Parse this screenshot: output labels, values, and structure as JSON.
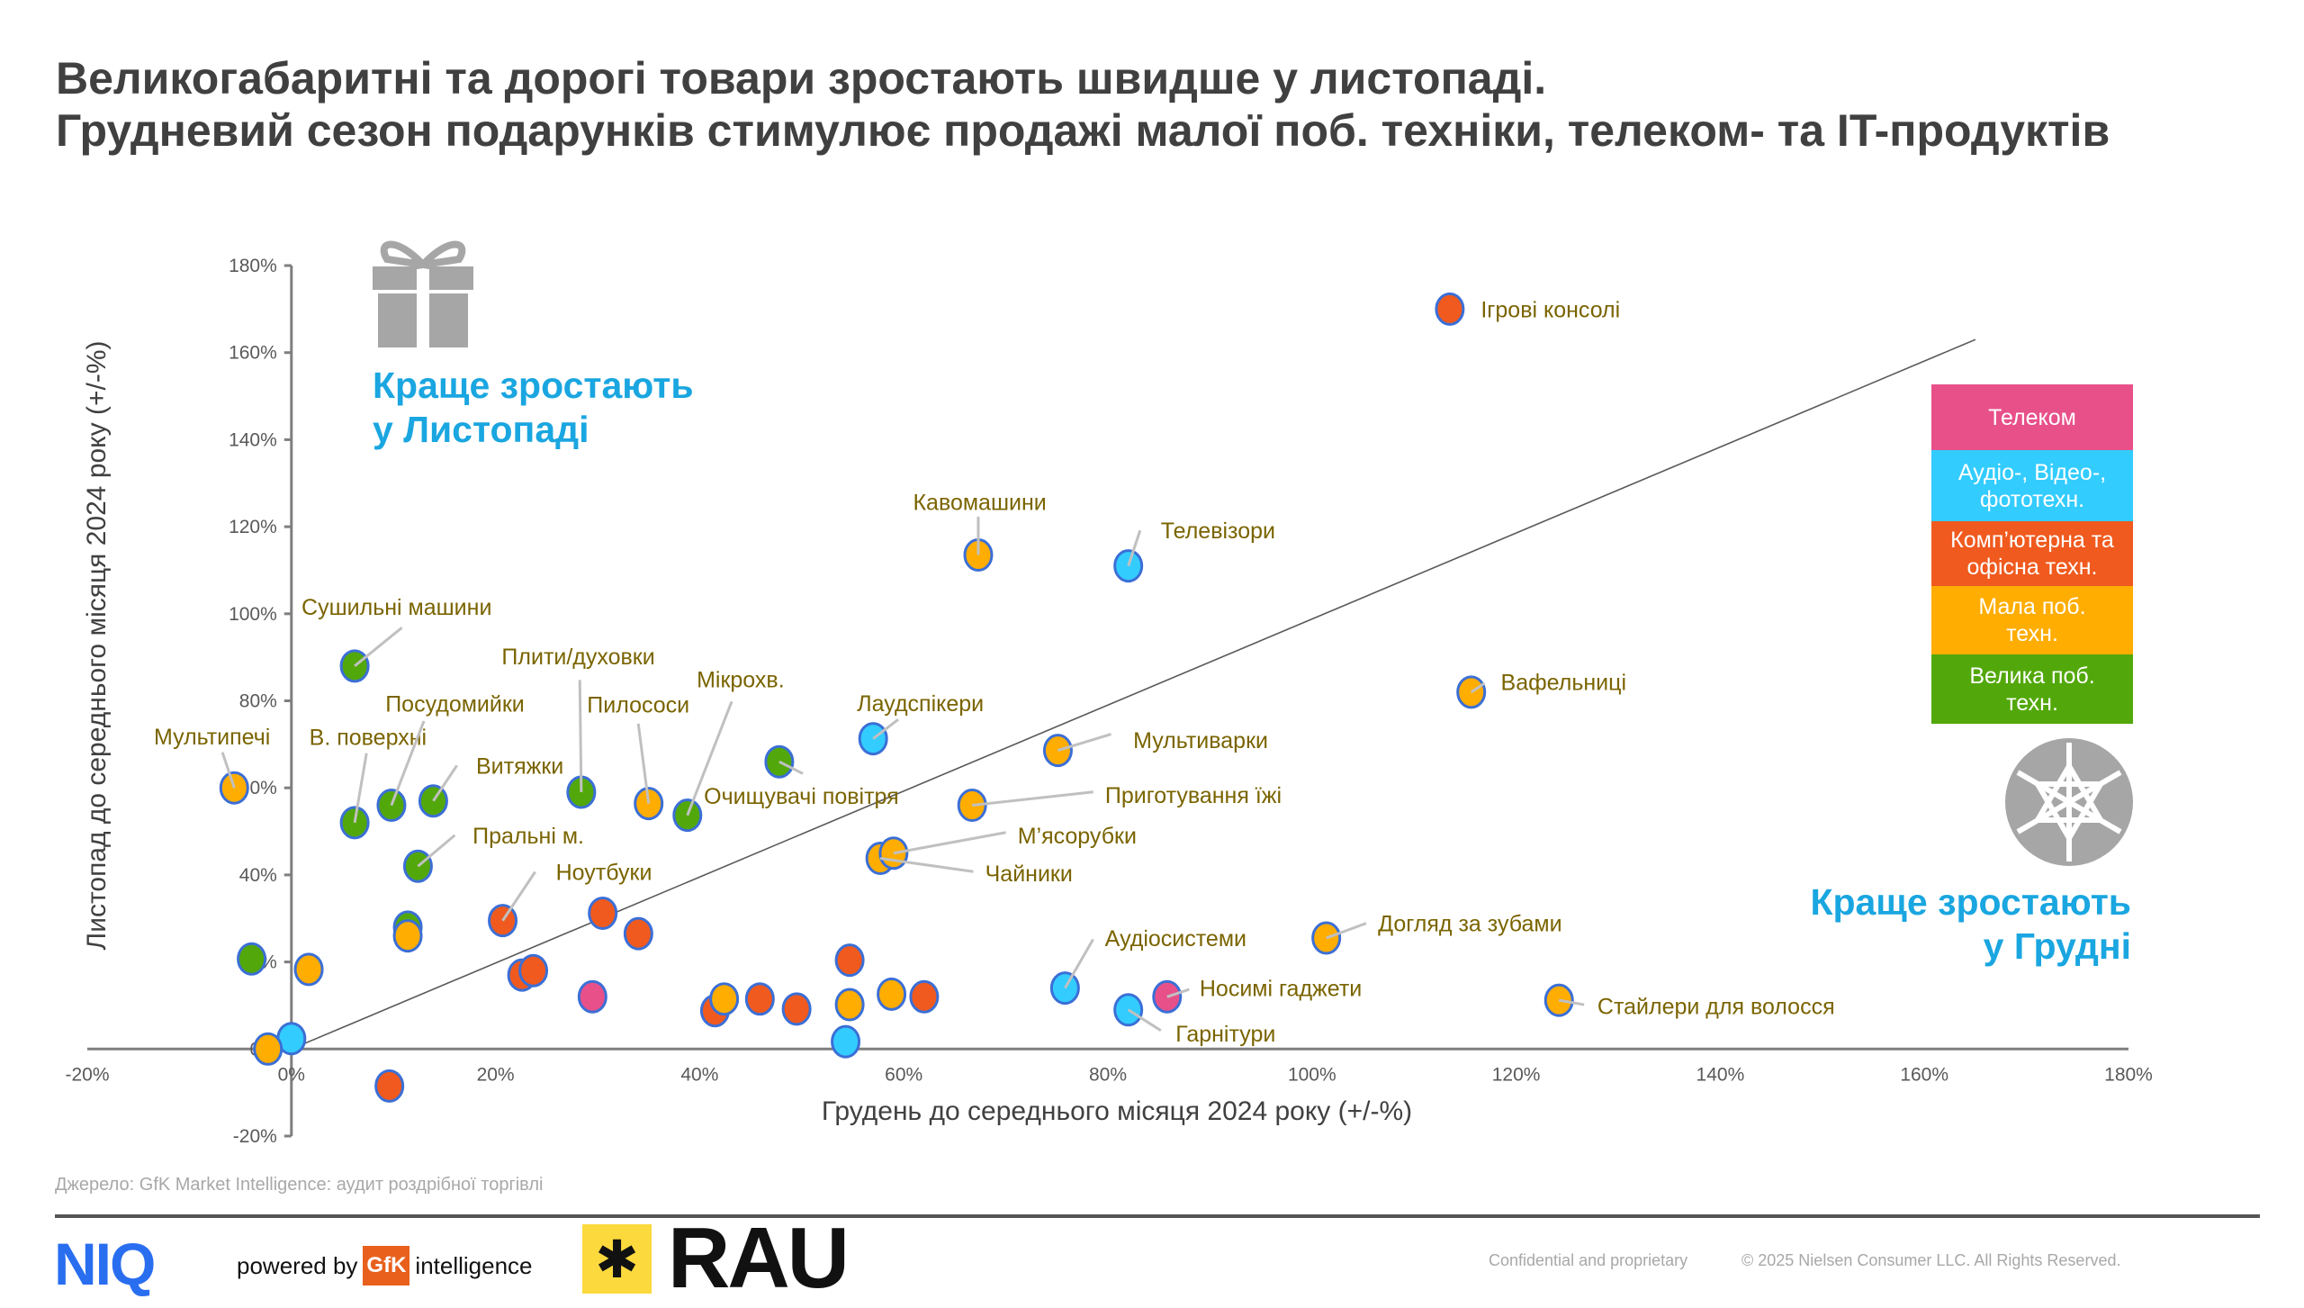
{
  "title": {
    "line1": "Великогабаритні та дорогі товари зростають швидше у листопаді.",
    "line2": "Грудневий сезон подарунків стимулює продажі малої поб. техніки, телеком- та IT-продуктів"
  },
  "callouts": {
    "november_line1": "Краще зростають",
    "november_line2": "у Листопаді",
    "december_line1": "Краще зростають",
    "december_line2": "у Грудні"
  },
  "icons": {
    "november": "gift-icon",
    "december": "snowflake-icon"
  },
  "legend": [
    {
      "key": "telecom",
      "label": "Телеком",
      "color": "#e8508a"
    },
    {
      "key": "audio",
      "label": "Аудіо-, Відео-, фототехн.",
      "color": "#33ccff"
    },
    {
      "key": "computer",
      "label": "Комп’ютерна та офісна техн.",
      "color": "#f05a1e"
    },
    {
      "key": "small",
      "label": "Мала поб. техн.",
      "color": "#ffad00"
    },
    {
      "key": "large",
      "label": "Велика поб. техн.",
      "color": "#52a80a"
    }
  ],
  "chart_data": {
    "type": "scatter",
    "xlabel": "Грудень до середнього місяця 2024 року (+/-%)",
    "ylabel": "Листопад до середнього місяця 2024 року (+/-%)",
    "xlim": [
      -20,
      180
    ],
    "ylim": [
      -20,
      180
    ],
    "x_ticks": [
      "-20%",
      "0%",
      "20%",
      "40%",
      "60%",
      "80%",
      "100%",
      "120%",
      "140%",
      "160%",
      "180%"
    ],
    "y_ticks": [
      "-20%",
      "0%",
      "20%",
      "40%",
      "60%",
      "80%",
      "100%",
      "120%",
      "140%",
      "160%",
      "180%"
    ],
    "reference_line": {
      "from": [
        0,
        0
      ],
      "to": [
        165,
        163
      ]
    },
    "points": [
      {
        "label": "Ігрові консолі",
        "category": "computer",
        "x": 113.5,
        "y": 170
      },
      {
        "label": "Кавомашини",
        "category": "small",
        "x": 67.3,
        "y": 113.5
      },
      {
        "label": "Телевізори",
        "category": "audio",
        "x": 82,
        "y": 111
      },
      {
        "label": "Сушильні машини",
        "category": "large",
        "x": 6.2,
        "y": 88
      },
      {
        "label": "Вафельниці",
        "category": "small",
        "x": 115.6,
        "y": 82
      },
      {
        "label": "Мультипечі",
        "category": "small",
        "x": -5.6,
        "y": 60
      },
      {
        "label": "В. поверхні",
        "category": "large",
        "x": 6.2,
        "y": 52
      },
      {
        "label": "Посудомийки",
        "category": "large",
        "x": 9.8,
        "y": 56
      },
      {
        "label": "Витяжки",
        "category": "large",
        "x": 13.9,
        "y": 57
      },
      {
        "label": "Плити/духовки",
        "category": "large",
        "x": 28.4,
        "y": 59
      },
      {
        "label": "Пилососи",
        "category": "small",
        "x": 35,
        "y": 56.4
      },
      {
        "label": "Мікрохв.",
        "category": "large",
        "x": 38.8,
        "y": 53.7
      },
      {
        "label": "Лаудспікери",
        "category": "audio",
        "x": 57,
        "y": 71.3
      },
      {
        "label": "Очищувачі повітря",
        "category": "large",
        "x": 47.8,
        "y": 66
      },
      {
        "label": "Мультиварки",
        "category": "small",
        "x": 75.1,
        "y": 68.6
      },
      {
        "label": "Приготування їжі",
        "category": "small",
        "x": 66.7,
        "y": 56
      },
      {
        "label": "Чайники",
        "category": "small",
        "x": 57.7,
        "y": 43.8
      },
      {
        "label": "М’ясорубки",
        "category": "small",
        "x": 59,
        "y": 45
      },
      {
        "label": "Пральні м.",
        "category": "large",
        "x": 12.4,
        "y": 42
      },
      {
        "label": "Ноутбуки",
        "category": "computer",
        "x": 20.7,
        "y": 29.5
      },
      {
        "label": "Аудіосистеми",
        "category": "audio",
        "x": 75.8,
        "y": 14
      },
      {
        "label": "Догляд за зубами",
        "category": "small",
        "x": 101.4,
        "y": 25.5
      },
      {
        "label": "Носимі гаджети",
        "category": "telecom",
        "x": 85.8,
        "y": 12
      },
      {
        "label": "Гарнітури",
        "category": "audio",
        "x": 82,
        "y": 9
      },
      {
        "label": "Стайлери для волосся",
        "category": "small",
        "x": 124.2,
        "y": 11.2
      },
      {
        "label": "",
        "category": "computer",
        "x": 30.5,
        "y": 31.2
      },
      {
        "label": "",
        "category": "computer",
        "x": 34,
        "y": 26.5
      },
      {
        "label": "",
        "category": "large",
        "x": -3.9,
        "y": 20.7
      },
      {
        "label": "",
        "category": "small",
        "x": 1.7,
        "y": 18.3
      },
      {
        "label": "",
        "category": "large",
        "x": 11.4,
        "y": 28
      },
      {
        "label": "",
        "category": "small",
        "x": 11.4,
        "y": 26
      },
      {
        "label": "",
        "category": "computer",
        "x": 22.6,
        "y": 17
      },
      {
        "label": "",
        "category": "computer",
        "x": 23.7,
        "y": 18
      },
      {
        "label": "",
        "category": "telecom",
        "x": 29.5,
        "y": 12
      },
      {
        "label": "",
        "category": "computer",
        "x": 41.5,
        "y": 8.8
      },
      {
        "label": "",
        "category": "small",
        "x": 42.4,
        "y": 11.5
      },
      {
        "label": "",
        "category": "computer",
        "x": 45.9,
        "y": 11.5
      },
      {
        "label": "",
        "category": "computer",
        "x": 49.5,
        "y": 9.2
      },
      {
        "label": "",
        "category": "computer",
        "x": 54.7,
        "y": 20.4
      },
      {
        "label": "",
        "category": "small",
        "x": 54.7,
        "y": 10.2
      },
      {
        "label": "",
        "category": "small",
        "x": 58.8,
        "y": 12.6
      },
      {
        "label": "",
        "category": "computer",
        "x": 62,
        "y": 12
      },
      {
        "label": "",
        "category": "audio",
        "x": 54.3,
        "y": 1.7
      },
      {
        "label": "",
        "category": "audio",
        "x": 0,
        "y": 2.4
      },
      {
        "label": "",
        "category": "small",
        "x": -2.3,
        "y": 0
      },
      {
        "label": "",
        "category": "computer",
        "x": 9.6,
        "y": -8.5
      }
    ]
  },
  "source": "Джерело: GfK Market Intelligence: аудит роздрібної торгівлі",
  "footer": {
    "niq": "NIQ",
    "powered_by": "powered by",
    "gfk": "GfK",
    "intelligence": "intelligence",
    "rau": "RAU",
    "confidential": "Confidential and proprietary",
    "copyright": "© 2025 Nielsen Consumer LLC. All Rights Reserved."
  }
}
